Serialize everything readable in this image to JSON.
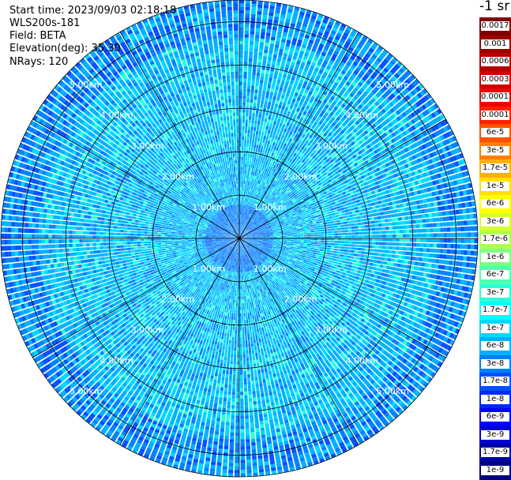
{
  "info": {
    "start_time": "Start time: 2023/09/03 02:18:18",
    "station": "WLS200s-181",
    "field": "Field: BETA",
    "elevation": "Elevation(deg): 35.30",
    "nrays": "NRays: 120"
  },
  "colorbar": {
    "units": "-1 sr",
    "labels": [
      "0.0017",
      "0.001",
      "0.0006",
      "0.0003",
      "0.00017",
      "0.0001",
      "6e-5",
      "3e-5",
      "1.7e-5",
      "1e-5",
      "6e-6",
      "3e-6",
      "1.7e-6",
      "1e-6",
      "6e-7",
      "3e-7",
      "1.7e-7",
      "1e-7",
      "6e-8",
      "3e-8",
      "1.7e-8",
      "1e-8",
      "6e-9",
      "3e-9",
      "1.7e-9",
      "1e-9"
    ],
    "colors": [
      "#800000",
      "#9b0000",
      "#b40000",
      "#d00000",
      "#ee0000",
      "#ff2000",
      "#ff5000",
      "#ff8000",
      "#ffb000",
      "#ffe000",
      "#ffff00",
      "#d8ff28",
      "#b0ff50",
      "#80ff80",
      "#50ffb0",
      "#28ffd8",
      "#00ffff",
      "#00d8ff",
      "#00b0ff",
      "#0080ff",
      "#0050ff",
      "#0028ff",
      "#0000ff",
      "#0000d0",
      "#0000a0",
      "#000080"
    ]
  },
  "chart_data": {
    "type": "heatmap",
    "projection": "polar (PPI)",
    "field": "BETA",
    "n_rays": 120,
    "elevation_deg": 35.3,
    "range_rings_km": [
      1,
      2,
      3,
      4,
      5
    ],
    "range_ring_labels": [
      "1.00km",
      "2.00km",
      "3.00km",
      "4.00km",
      "5.00km"
    ],
    "max_range_km": 5.5,
    "azimuth_spokes_deg": [
      0,
      30,
      60,
      90,
      120,
      150,
      180,
      210,
      240,
      270,
      300,
      330
    ],
    "dominant_value_range": [
      "1e-7",
      "3e-8"
    ],
    "colorscale": "log",
    "color_min": "1e-9",
    "color_max": "0.0017"
  }
}
